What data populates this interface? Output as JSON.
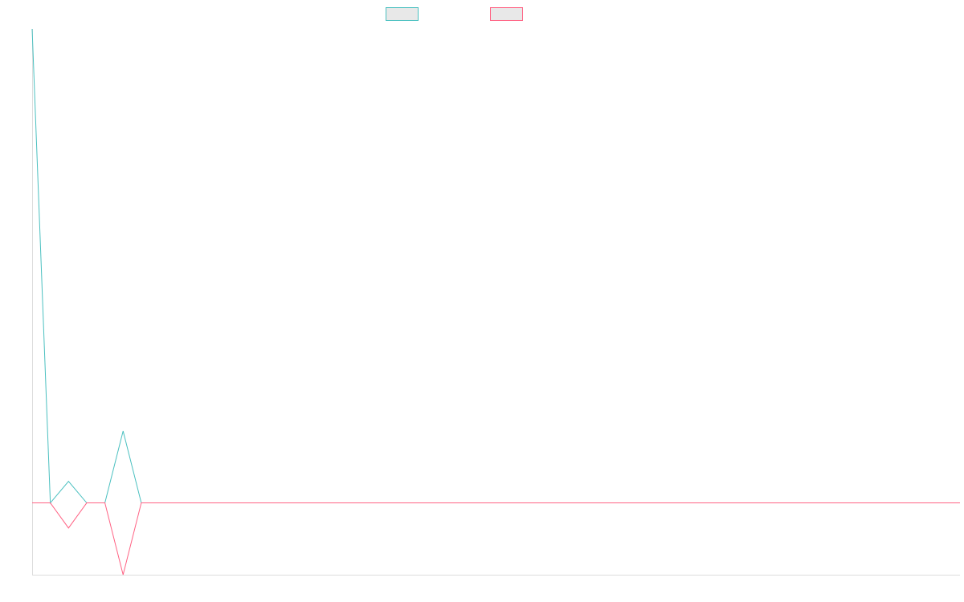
{
  "chart_data": {
    "type": "line",
    "title": "",
    "xlabel": "",
    "ylabel": "",
    "x": [
      0,
      1,
      2,
      3,
      4,
      5,
      6,
      7,
      8,
      9,
      10,
      11,
      12,
      13,
      14,
      15,
      16,
      17,
      18,
      19,
      20,
      21,
      22,
      23,
      24,
      25,
      26,
      27,
      28,
      29,
      30,
      31,
      32,
      33,
      34,
      35,
      36,
      37,
      38,
      39,
      40,
      41,
      42,
      43,
      44,
      45,
      46,
      47,
      48,
      49,
      50,
      51
    ],
    "series": [
      {
        "name": "",
        "color": "#4bc0c0",
        "values": [
          6.6,
          0,
          0.3,
          0,
          0,
          1,
          0,
          0,
          0,
          0,
          0,
          0,
          0,
          0,
          0,
          0,
          0,
          0,
          0,
          0,
          0,
          0,
          0,
          0,
          0,
          0,
          0,
          0,
          0,
          0,
          0,
          0,
          0,
          0,
          0,
          0,
          0,
          0,
          0,
          0,
          0,
          0,
          0,
          0,
          0,
          0,
          0,
          0,
          0,
          0,
          0,
          0
        ]
      },
      {
        "name": "",
        "color": "#ff6384",
        "values": [
          0,
          0,
          -0.35,
          0,
          0,
          -1,
          0,
          0,
          0,
          0,
          0,
          0,
          0,
          0,
          0,
          0,
          0,
          0,
          0,
          0,
          0,
          0,
          0,
          0,
          0,
          0,
          0,
          0,
          0,
          0,
          0,
          0,
          0,
          0,
          0,
          0,
          0,
          0,
          0,
          0,
          0,
          0,
          0,
          0,
          0,
          0,
          0,
          0,
          0,
          0,
          0,
          0
        ]
      }
    ],
    "ylim": [
      -1,
      6.6
    ],
    "grid": false,
    "legend_placement": "top-center"
  }
}
